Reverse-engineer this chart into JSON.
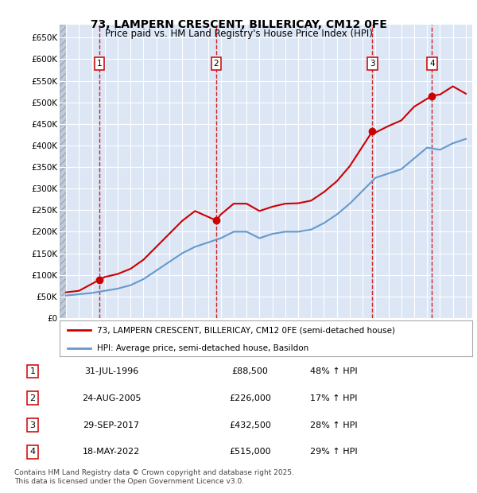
{
  "title": "73, LAMPERN CRESCENT, BILLERICAY, CM12 0FE",
  "subtitle": "Price paid vs. HM Land Registry's House Price Index (HPI)",
  "legend_line1": "73, LAMPERN CRESCENT, BILLERICAY, CM12 0FE (semi-detached house)",
  "legend_line2": "HPI: Average price, semi-detached house, Basildon",
  "footer": "Contains HM Land Registry data © Crown copyright and database right 2025.\nThis data is licensed under the Open Government Licence v3.0.",
  "sales": [
    {
      "num": 1,
      "date": "31-JUL-1996",
      "price": 88500,
      "price_str": "£88,500",
      "hpi_pct": "48% ↑ HPI",
      "year": 1996.58
    },
    {
      "num": 2,
      "date": "24-AUG-2005",
      "price": 226000,
      "price_str": "£226,000",
      "hpi_pct": "17% ↑ HPI",
      "year": 2005.65
    },
    {
      "num": 3,
      "date": "29-SEP-2017",
      "price": 432500,
      "price_str": "£432,500",
      "hpi_pct": "28% ↑ HPI",
      "year": 2017.75
    },
    {
      "num": 4,
      "date": "18-MAY-2022",
      "price": 515000,
      "price_str": "£515,000",
      "hpi_pct": "29% ↑ HPI",
      "year": 2022.38
    }
  ],
  "red_line_color": "#cc0000",
  "blue_line_color": "#6699cc",
  "background_color": "#dce6f5",
  "ylim": [
    0,
    680000
  ],
  "xlim": [
    1993.5,
    2025.5
  ],
  "yticks": [
    0,
    50000,
    100000,
    150000,
    200000,
    250000,
    300000,
    350000,
    400000,
    450000,
    500000,
    550000,
    600000,
    650000
  ],
  "xticks": [
    1994,
    1995,
    1996,
    1997,
    1998,
    1999,
    2000,
    2001,
    2002,
    2003,
    2004,
    2005,
    2006,
    2007,
    2008,
    2009,
    2010,
    2011,
    2012,
    2013,
    2014,
    2015,
    2016,
    2017,
    2018,
    2019,
    2020,
    2021,
    2022,
    2023,
    2024,
    2025
  ],
  "hpi_years": [
    1994,
    1995,
    1996,
    1997,
    1998,
    1999,
    2000,
    2001,
    2002,
    2003,
    2004,
    2005,
    2006,
    2007,
    2008,
    2009,
    2010,
    2011,
    2012,
    2013,
    2014,
    2015,
    2016,
    2017,
    2018,
    2019,
    2020,
    2021,
    2022,
    2023,
    2024,
    2025
  ],
  "hpi_values": [
    52000,
    55000,
    58000,
    63000,
    68000,
    76000,
    90000,
    110000,
    130000,
    150000,
    165000,
    175000,
    185000,
    200000,
    200000,
    185000,
    195000,
    200000,
    200000,
    205000,
    220000,
    240000,
    265000,
    295000,
    325000,
    335000,
    345000,
    370000,
    395000,
    390000,
    405000,
    415000
  ],
  "price_paid_years": [
    1994.0,
    1995.0,
    1996.58,
    1997.0,
    1998.0,
    1999.0,
    2000.0,
    2001.0,
    2002.0,
    2003.0,
    2004.0,
    2005.65,
    2006.0,
    2007.0,
    2008.0,
    2009.0,
    2010.0,
    2011.0,
    2012.0,
    2013.0,
    2014.0,
    2015.0,
    2016.0,
    2017.75,
    2018.0,
    2019.0,
    2020.0,
    2021.0,
    2022.38,
    2023.0,
    2024.0,
    2025.0
  ],
  "price_paid_values": [
    59500,
    63000,
    88500,
    95000,
    102000,
    114000,
    135000,
    165000,
    195000,
    225000,
    248000,
    226000,
    240000,
    265000,
    265000,
    248000,
    258000,
    265000,
    266000,
    272000,
    292000,
    317000,
    352000,
    432500,
    430000,
    445000,
    458000,
    490000,
    515000,
    518000,
    537000,
    520000
  ]
}
